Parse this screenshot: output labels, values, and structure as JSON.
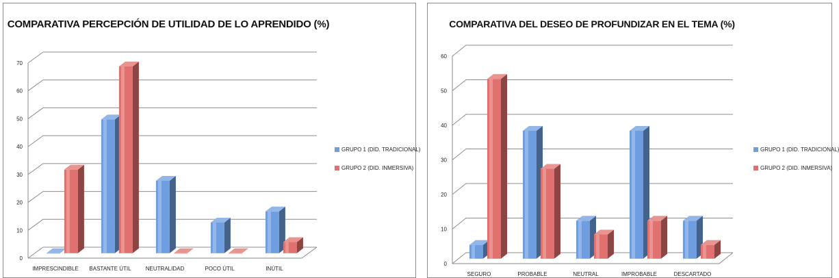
{
  "chart_data": [
    {
      "type": "bar",
      "title": "COMPARATIVA PERCEPCIÓN DE UTILIDAD DE LO APRENDIDO (%)",
      "categories": [
        "IMPRESCINDIBLE",
        "BASTANTE ÚTIL",
        "NEUTRALIDAD",
        "POCO ÚTIL",
        "INÚTIL"
      ],
      "series": [
        {
          "name": "GRUPO 1 (DID. TRADICIONAL)",
          "values": [
            0,
            48,
            26,
            11,
            15
          ],
          "color": "#6f9ee0"
        },
        {
          "name": "GRUPO 2 (DID. INMERSIVA)",
          "values": [
            30,
            67,
            0,
            0,
            4
          ],
          "color": "#e0716e"
        }
      ],
      "ylim": [
        0,
        70
      ],
      "yticks": [
        0,
        10,
        20,
        30,
        40,
        50,
        60,
        70
      ],
      "grid": true,
      "legend": "right",
      "xlabel": "",
      "ylabel": ""
    },
    {
      "type": "bar",
      "title": "COMPARATIVA DEL DESEO DE PROFUNDIZAR EN EL TEMA (%)",
      "categories": [
        "SEGURO",
        "PROBABLE",
        "NEUTRAL",
        "IMPROBABLE",
        "DESCARTADO"
      ],
      "series": [
        {
          "name": "GRUPO 1 (DID. TRADICIONAL)",
          "values": [
            4,
            37,
            11,
            37,
            11
          ],
          "color": "#6f9ee0"
        },
        {
          "name": "GRUPO 2 (DID. INMERSIVA)",
          "values": [
            52,
            26,
            7,
            11,
            4
          ],
          "color": "#e0716e"
        }
      ],
      "ylim": [
        0,
        60
      ],
      "yticks": [
        0,
        10,
        20,
        30,
        40,
        50,
        60
      ],
      "grid": true,
      "legend": "right",
      "xlabel": "",
      "ylabel": ""
    }
  ]
}
